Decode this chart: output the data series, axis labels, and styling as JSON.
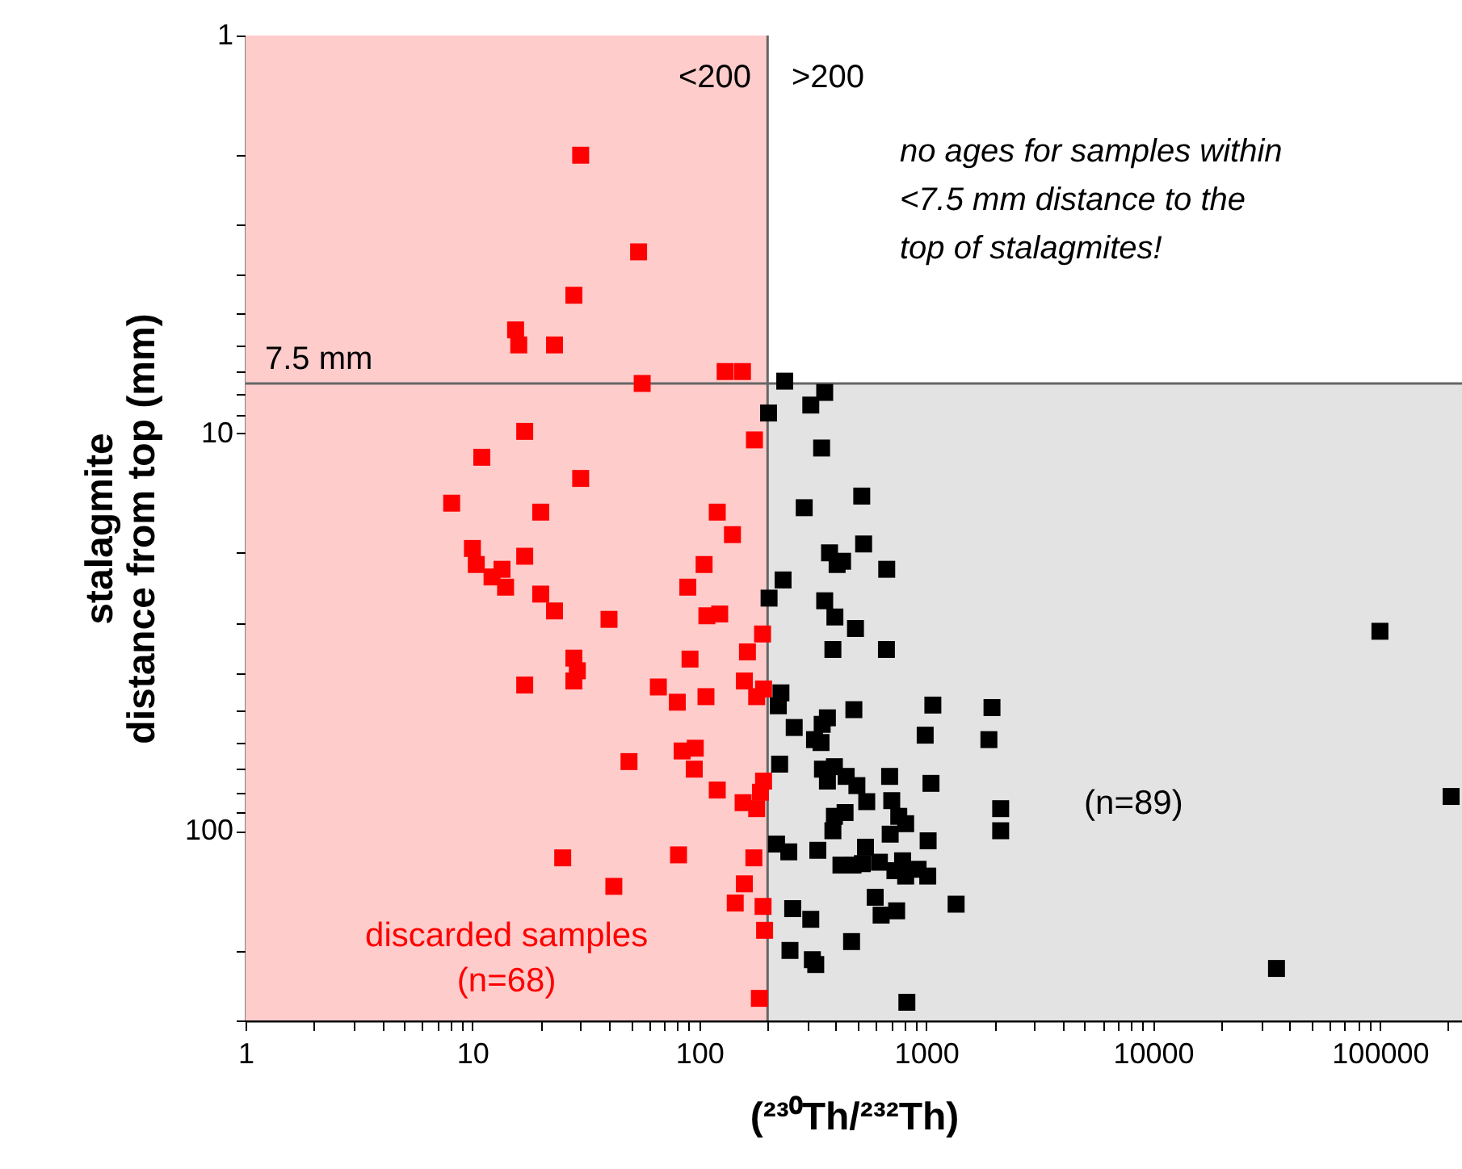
{
  "chart_data": {
    "type": "scatter",
    "xlabel": "(²³⁰Th/²³²Th)",
    "ylabel": "stalagmite\ndistance from top (mm)",
    "log": "xy",
    "marker": "square",
    "grid": false,
    "legend": false,
    "xlim": [
      1,
      230000
    ],
    "ylim": [
      300,
      1
    ],
    "xticks": [
      1,
      {
        "value": 2,
        "label": null
      },
      {
        "value": 3,
        "label": null
      },
      {
        "value": 4,
        "label": null
      },
      {
        "value": 5,
        "label": null
      },
      {
        "value": 6,
        "label": null
      },
      {
        "value": 7,
        "label": null
      },
      {
        "value": 8,
        "label": null
      },
      {
        "value": 9,
        "label": null
      },
      10,
      {
        "value": 20,
        "label": null
      },
      {
        "value": 30,
        "label": null
      },
      {
        "value": 40,
        "label": null
      },
      {
        "value": 50,
        "label": null
      },
      {
        "value": 60,
        "label": null
      },
      {
        "value": 70,
        "label": null
      },
      {
        "value": 80,
        "label": null
      },
      {
        "value": 90,
        "label": null
      },
      100,
      {
        "value": 200,
        "label": null
      },
      {
        "value": 300,
        "label": null
      },
      {
        "value": 400,
        "label": null
      },
      {
        "value": 500,
        "label": null
      },
      {
        "value": 600,
        "label": null
      },
      {
        "value": 700,
        "label": null
      },
      {
        "value": 800,
        "label": null
      },
      {
        "value": 900,
        "label": null
      },
      1000,
      {
        "value": 2000,
        "label": null
      },
      {
        "value": 3000,
        "label": null
      },
      {
        "value": 4000,
        "label": null
      },
      {
        "value": 5000,
        "label": null
      },
      {
        "value": 6000,
        "label": null
      },
      {
        "value": 7000,
        "label": null
      },
      {
        "value": 8000,
        "label": null
      },
      {
        "value": 9000,
        "label": null
      },
      10000,
      {
        "value": 20000,
        "label": null
      },
      {
        "value": 30000,
        "label": null
      },
      {
        "value": 40000,
        "label": null
      },
      {
        "value": 50000,
        "label": null
      },
      {
        "value": 60000,
        "label": null
      },
      {
        "value": 70000,
        "label": null
      },
      {
        "value": 80000,
        "label": null
      },
      {
        "value": 90000,
        "label": null
      },
      100000,
      {
        "value": 200000,
        "label": null
      }
    ],
    "yticks": [
      1,
      {
        "value": 2,
        "label": null
      },
      {
        "value": 3,
        "label": null
      },
      {
        "value": 4,
        "label": null
      },
      {
        "value": 5,
        "label": null
      },
      {
        "value": 6,
        "label": null
      },
      {
        "value": 7,
        "label": null
      },
      {
        "value": 8,
        "label": null
      },
      {
        "value": 9,
        "label": null
      },
      10,
      {
        "value": 20,
        "label": null
      },
      {
        "value": 30,
        "label": null
      },
      {
        "value": 40,
        "label": null
      },
      {
        "value": 50,
        "label": null
      },
      {
        "value": 60,
        "label": null
      },
      {
        "value": 70,
        "label": null
      },
      {
        "value": 80,
        "label": null
      },
      {
        "value": 90,
        "label": null
      },
      100,
      {
        "value": 200,
        "label": null
      },
      {
        "value": 300,
        "label": null
      }
    ],
    "bands": [
      {
        "axis": "y",
        "from": 7.5,
        "to": 300,
        "label": "(n=89)",
        "color": "#e3e3e3"
      },
      {
        "axis": "x",
        "from": 1,
        "to": 200,
        "label": "discarded samples\n(n=68)",
        "color": "#ffcccc"
      }
    ],
    "ref_lines": [
      {
        "axis": "x",
        "value": 200,
        "label": null,
        "color": "#666666"
      },
      {
        "axis": "y",
        "value": 7.5,
        "label": "7.5 mm",
        "color": "#666666"
      }
    ],
    "annotations": [
      "<200",
      ">200",
      "no ages for samples within\n<7.5 mm distance to the\ntop of stalagmites!"
    ],
    "series": [
      {
        "color": "#ff0000",
        "x": [
          30,
          54,
          28,
          15.5,
          16,
          23,
          130,
          155,
          56,
          175,
          17,
          11,
          30,
          8.1,
          20,
          120,
          140,
          10,
          10.4,
          13.5,
          12.2,
          14,
          17,
          105,
          89,
          20,
          23,
          40,
          108,
          123,
          190,
          163,
          28,
          29,
          28,
          91,
          17,
          66,
          80,
          107,
          158,
          192,
          179,
          49,
          84,
          96,
          95,
          120,
          156,
          179,
          192,
          186,
          25,
          81,
          42,
          174,
          158,
          144,
          191,
          194,
          184
        ],
        "values": [
          2.0,
          3.5,
          4.5,
          5.5,
          6.0,
          6.0,
          7.0,
          7.0,
          7.5,
          10.4,
          9.9,
          11.5,
          13,
          15,
          15.8,
          15.8,
          18,
          19.5,
          21.4,
          22,
          23,
          24.4,
          20.4,
          21.4,
          24.4,
          25.4,
          28,
          29.4,
          28.8,
          28.5,
          32,
          35.5,
          36.8,
          39.6,
          42,
          37,
          43,
          43.5,
          47.5,
          46,
          42,
          44,
          46,
          67,
          63,
          62,
          70,
          79,
          85,
          88,
          75,
          80,
          117,
          115,
          138,
          117,
          136,
          152,
          155,
          178,
          264
        ]
      },
      {
        "color": "#000000",
        "x": [
          238,
          357,
          310,
          202,
          346,
          520,
          290,
          530,
          375,
          428,
          405,
          670,
          234,
          203,
          357,
          396,
          488,
          388,
          668,
          229,
          223,
          480,
          1070,
          1950,
          262,
          367,
          348,
          322,
          344,
          990,
          1890,
          226,
          349,
          394,
          367,
          444,
          495,
          547,
          690,
          1050,
          705,
          757,
          812,
          694,
          394,
          439,
          388,
          2130,
          2130,
          1020,
          219,
          248,
          333,
          540,
          421,
          476,
          523,
          622,
          728,
          787,
          812,
          921,
          1016,
          596,
          258,
          310,
          633,
          741,
          1355,
          251,
          315,
          326,
          469,
          822,
          100000,
          206000,
          35000
        ],
        "values": [
          7.4,
          7.9,
          8.5,
          8.9,
          10.9,
          14.4,
          15.4,
          19,
          20,
          21,
          21.4,
          22,
          23.4,
          26,
          26.4,
          29,
          31,
          35,
          35,
          45,
          48.5,
          49.6,
          48.3,
          49,
          55,
          52,
          54,
          59,
          60,
          57.5,
          59,
          68,
          70,
          69,
          75,
          73,
          77,
          84.5,
          73,
          76,
          84,
          92,
          96,
          102,
          92,
          90,
          100,
          88,
          100,
          106,
          108,
          113,
          112,
          110,
          122,
          122,
          121,
          120,
          126,
          119,
          130,
          125,
          130,
          147,
          157,
          167,
          163,
          159,
          153,
          200,
          211,
          217,
          190,
          270,
          31.5,
          82,
          222
        ]
      }
    ]
  }
}
